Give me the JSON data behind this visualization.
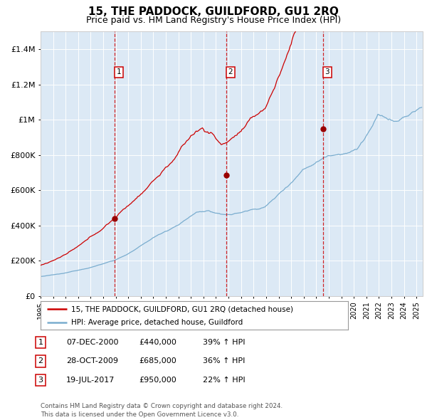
{
  "title": "15, THE PADDOCK, GUILDFORD, GU1 2RQ",
  "subtitle": "Price paid vs. HM Land Registry's House Price Index (HPI)",
  "title_fontsize": 11,
  "subtitle_fontsize": 9,
  "plot_bg_color": "#dce9f5",
  "outer_bg_color": "#ffffff",
  "red_line_color": "#cc0000",
  "blue_line_color": "#7aadcf",
  "sale_marker_color": "#990000",
  "grid_color": "#ffffff",
  "dashed_line_color": "#cc0000",
  "ylim": [
    0,
    1500000
  ],
  "yticks": [
    0,
    200000,
    400000,
    600000,
    800000,
    1000000,
    1200000,
    1400000
  ],
  "ytick_labels": [
    "£0",
    "£200K",
    "£400K",
    "£600K",
    "£800K",
    "£1M",
    "£1.2M",
    "£1.4M"
  ],
  "xstart": 1995,
  "xend": 2025.5,
  "sales": [
    {
      "label": "1",
      "year": 2000.92,
      "price": 440000
    },
    {
      "label": "2",
      "year": 2009.83,
      "price": 685000
    },
    {
      "label": "3",
      "year": 2017.54,
      "price": 950000
    }
  ],
  "legend_line1": "15, THE PADDOCK, GUILDFORD, GU1 2RQ (detached house)",
  "legend_line2": "HPI: Average price, detached house, Guildford",
  "table": [
    {
      "num": "1",
      "date": "07-DEC-2000",
      "price": "£440,000",
      "hpi": "39% ↑ HPI"
    },
    {
      "num": "2",
      "date": "28-OCT-2009",
      "price": "£685,000",
      "hpi": "36% ↑ HPI"
    },
    {
      "num": "3",
      "date": "19-JUL-2017",
      "price": "£950,000",
      "hpi": "22% ↑ HPI"
    }
  ],
  "footer": "Contains HM Land Registry data © Crown copyright and database right 2024.\nThis data is licensed under the Open Government Licence v3.0."
}
